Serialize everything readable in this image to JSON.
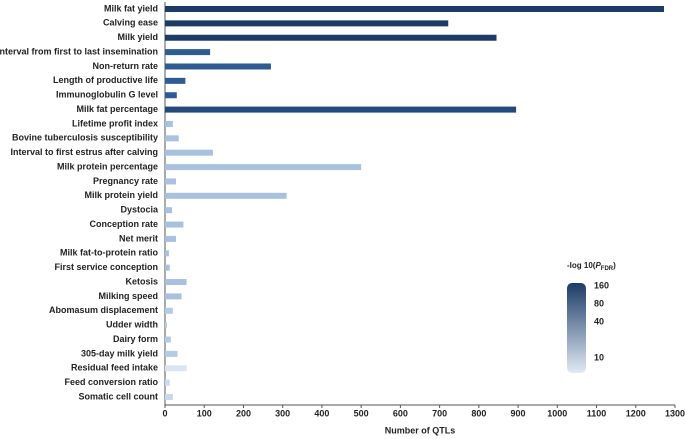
{
  "chart_data": {
    "type": "bar",
    "orientation": "horizontal",
    "x_label": "Number of QTLs",
    "categories": [
      "Milk fat yield",
      "Calving ease",
      "Milk yield",
      "Interval from first to last insemination",
      "Non-return rate",
      "Length of productive life",
      "Immunoglobulin G level",
      "Milk fat percentage",
      "Lifetime profit index",
      "Bovine tuberculosis susceptibility",
      "Interval to first estrus after calving",
      "Milk protein percentage",
      "Pregnancy rate",
      "Milk protein yield",
      "Dystocia",
      "Conception rate",
      "Net merit",
      "Milk fat-to-protein ratio",
      "First service conception",
      "Ketosis",
      "Milking speed",
      "Abomasum displacement",
      "Udder width",
      "Dairy form",
      "305-day milk yield",
      "Residual feed intake",
      "Feed conversion ratio",
      "Somatic cell count"
    ],
    "values": [
      1272,
      722,
      845,
      115,
      270,
      52,
      30,
      895,
      20,
      35,
      122,
      500,
      28,
      310,
      18,
      47,
      28,
      10,
      12,
      55,
      42,
      20,
      5,
      15,
      32,
      55,
      12,
      20
    ],
    "colors": [
      "#1c3b66",
      "#1c3b66",
      "#1c3b66",
      "#2e5c92",
      "#2e5c92",
      "#2e5c92",
      "#2e5c92",
      "#24497a",
      "#a7c1df",
      "#a7c1df",
      "#a7c1df",
      "#a7c1df",
      "#a7c1df",
      "#a7c1df",
      "#a7c1df",
      "#a7c1df",
      "#a7c1df",
      "#a7c1df",
      "#a7c1df",
      "#a7c1df",
      "#a7c1df",
      "#b4cbe5",
      "#b4cbe5",
      "#b4cbe5",
      "#b4cbe5",
      "#dbe5f2",
      "#c9d8ec",
      "#c9d8ec"
    ],
    "xlim": [
      0,
      1300
    ],
    "xticks": [
      0,
      100,
      200,
      300,
      400,
      500,
      600,
      700,
      800,
      900,
      1000,
      1100,
      1200,
      1300
    ],
    "colorbar": {
      "title_parts": [
        "-log 10(",
        "P",
        "FDR",
        ")"
      ],
      "clim": [
        5.6,
        180
      ],
      "log": true,
      "colors": [
        "#e1eaf5",
        "#1c3b66"
      ],
      "ticks": [
        160,
        80,
        40,
        10
      ]
    }
  }
}
